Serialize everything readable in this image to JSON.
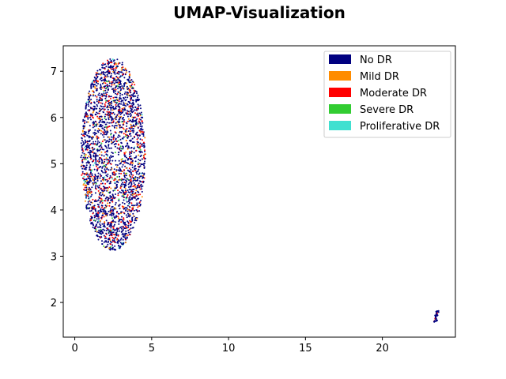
{
  "chart_data": {
    "type": "scatter",
    "title": "UMAP-Visualization",
    "xlabel": "",
    "ylabel": "",
    "xlim": [
      -0.75,
      24.75
    ],
    "ylim": [
      1.25,
      7.55
    ],
    "x_ticks": [
      0,
      5,
      10,
      15,
      20
    ],
    "x_tick_labels": [
      "0",
      "5",
      "10",
      "15",
      "20"
    ],
    "y_ticks": [
      2,
      3,
      4,
      5,
      6,
      7
    ],
    "y_tick_labels": [
      "2",
      "3",
      "4",
      "5",
      "6",
      "7"
    ],
    "grid": false,
    "legend_position": "top-right",
    "series": [
      {
        "name": "No DR",
        "color": "#000080"
      },
      {
        "name": "Mild DR",
        "color": "#ff8c00"
      },
      {
        "name": "Moderate DR",
        "color": "#ff0000"
      },
      {
        "name": "Severe DR",
        "color": "#32cd32"
      },
      {
        "name": "Proliferative DR",
        "color": "#40e0d0"
      }
    ],
    "clusters": [
      {
        "center": [
          2.5,
          5.2
        ],
        "x_range": [
          0.4,
          4.6
        ],
        "y_range": [
          3.1,
          7.25
        ],
        "composition": {
          "No DR": 0.72,
          "Mild DR": 0.08,
          "Moderate DR": 0.15,
          "Severe DR": 0.03,
          "Proliferative DR": 0.02
        }
      },
      {
        "center": [
          23.5,
          1.7
        ],
        "x_range": [
          23.3,
          23.7
        ],
        "y_range": [
          1.55,
          1.85
        ],
        "composition": {
          "No DR": 0.8,
          "Moderate DR": 0.2
        }
      }
    ]
  }
}
